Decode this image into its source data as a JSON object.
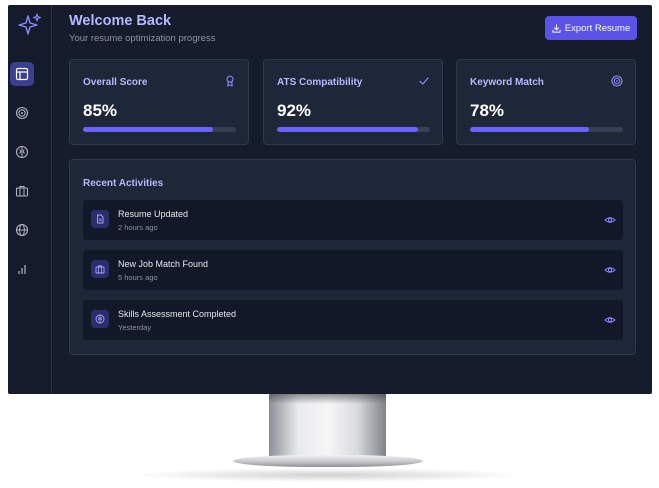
{
  "header": {
    "title": "Welcome Back",
    "subtitle": "Your resume optimization progress",
    "export_label": "Export Resume"
  },
  "sidebar": {
    "items": [
      {
        "icon": "layout-icon",
        "active": true
      },
      {
        "icon": "target-icon",
        "active": false
      },
      {
        "icon": "brain-icon",
        "active": false
      },
      {
        "icon": "briefcase-icon",
        "active": false
      },
      {
        "icon": "globe-icon",
        "active": false
      },
      {
        "icon": "bar-chart-icon",
        "active": false
      }
    ]
  },
  "stats": [
    {
      "label": "Overall Score",
      "value": "85%",
      "progress": 0.85,
      "icon": "award-icon"
    },
    {
      "label": "ATS Compatibility",
      "value": "92%",
      "progress": 0.92,
      "icon": "check-icon"
    },
    {
      "label": "Keyword Match",
      "value": "78%",
      "progress": 0.78,
      "icon": "target-icon"
    }
  ],
  "activities": {
    "title": "Recent Activities",
    "items": [
      {
        "title": "Resume Updated",
        "time": "2 hours ago",
        "icon": "file-icon"
      },
      {
        "title": "New Job Match Found",
        "time": "5 hours ago",
        "icon": "briefcase-icon"
      },
      {
        "title": "Skills Assessment Completed",
        "time": "Yesterday",
        "icon": "brain-icon"
      }
    ]
  },
  "colors": {
    "accent": "#6c63ff",
    "button": "#5b52e8",
    "background": "#151c2c",
    "card": "#1e2737",
    "heading": "#b6b8ff"
  }
}
